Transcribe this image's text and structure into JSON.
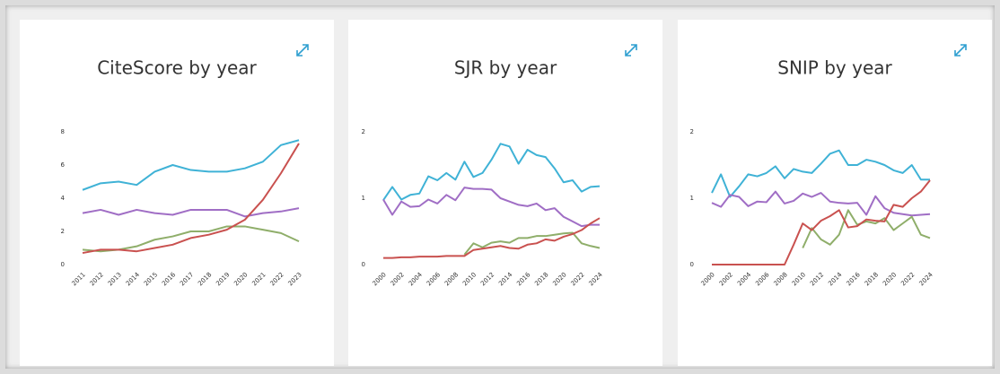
{
  "chart_data": [
    {
      "type": "line",
      "title": "CiteScore by year",
      "x": [
        2011,
        2012,
        2013,
        2014,
        2015,
        2016,
        2017,
        2018,
        2019,
        2020,
        2021,
        2022,
        2023
      ],
      "xlim": [
        2011,
        2023
      ],
      "xticks": [
        2011,
        2012,
        2013,
        2014,
        2015,
        2016,
        2017,
        2018,
        2019,
        2020,
        2021,
        2022,
        2023
      ],
      "ylim": [
        0,
        8
      ],
      "yticks": [
        0,
        2,
        4,
        6,
        8
      ],
      "series": [
        {
          "color": "#3fb2d6",
          "values": [
            4.5,
            4.9,
            5.0,
            4.8,
            5.6,
            6.0,
            5.7,
            5.6,
            5.6,
            5.8,
            6.2,
            7.2,
            7.5
          ]
        },
        {
          "color": "#a06ec5",
          "values": [
            3.1,
            3.3,
            3.0,
            3.3,
            3.1,
            3.0,
            3.3,
            3.3,
            3.3,
            2.9,
            3.1,
            3.2,
            3.4
          ]
        },
        {
          "color": "#8fae6a",
          "values": [
            0.9,
            0.8,
            0.9,
            1.1,
            1.5,
            1.7,
            2.0,
            2.0,
            2.3,
            2.3,
            2.1,
            1.9,
            1.4
          ]
        },
        {
          "color": "#c9514f",
          "values": [
            0.7,
            0.9,
            0.9,
            0.8,
            1.0,
            1.2,
            1.6,
            1.8,
            2.1,
            2.7,
            3.9,
            5.5,
            7.3
          ]
        }
      ]
    },
    {
      "type": "line",
      "title": "SJR by year",
      "x": [
        2000,
        2001,
        2002,
        2003,
        2004,
        2005,
        2006,
        2007,
        2008,
        2009,
        2010,
        2011,
        2012,
        2013,
        2014,
        2015,
        2016,
        2017,
        2018,
        2019,
        2020,
        2021,
        2022,
        2023,
        2024
      ],
      "xlim": [
        2000,
        2024
      ],
      "xticks": [
        2000,
        2002,
        2004,
        2006,
        2008,
        2010,
        2012,
        2014,
        2016,
        2018,
        2020,
        2022,
        2024
      ],
      "ylim": [
        0,
        2
      ],
      "yticks": [
        0,
        1,
        2
      ],
      "series": [
        {
          "color": "#3fb2d6",
          "values": [
            0.97,
            1.17,
            0.98,
            1.05,
            1.07,
            1.33,
            1.27,
            1.38,
            1.28,
            1.55,
            1.32,
            1.38,
            1.58,
            1.82,
            1.78,
            1.52,
            1.73,
            1.65,
            1.62,
            1.45,
            1.24,
            1.27,
            1.1,
            1.17,
            1.18
          ]
        },
        {
          "color": "#a06ec5",
          "values": [
            0.98,
            0.75,
            0.95,
            0.87,
            0.88,
            0.98,
            0.92,
            1.05,
            0.97,
            1.16,
            1.14,
            1.14,
            1.13,
            1.0,
            0.95,
            0.9,
            0.88,
            0.92,
            0.82,
            0.85,
            0.72,
            0.65,
            0.58,
            0.6,
            0.6
          ]
        },
        {
          "color": "#8fae6a",
          "values": [
            null,
            null,
            null,
            null,
            null,
            null,
            null,
            null,
            null,
            0.15,
            0.32,
            0.26,
            0.33,
            0.35,
            0.33,
            0.4,
            0.4,
            0.43,
            0.43,
            0.45,
            0.47,
            0.48,
            0.32,
            0.28,
            0.25
          ]
        },
        {
          "color": "#c9514f",
          "values": [
            0.1,
            0.1,
            0.11,
            0.11,
            0.12,
            0.12,
            0.12,
            0.13,
            0.13,
            0.13,
            0.22,
            0.24,
            0.26,
            0.28,
            0.25,
            0.24,
            0.3,
            0.32,
            0.38,
            0.36,
            0.42,
            0.46,
            0.52,
            0.62,
            0.7
          ]
        }
      ]
    },
    {
      "type": "line",
      "title": "SNIP by year",
      "x": [
        2000,
        2001,
        2002,
        2003,
        2004,
        2005,
        2006,
        2007,
        2008,
        2009,
        2010,
        2011,
        2012,
        2013,
        2014,
        2015,
        2016,
        2017,
        2018,
        2019,
        2020,
        2021,
        2022,
        2023,
        2024
      ],
      "xlim": [
        2000,
        2024
      ],
      "xticks": [
        2000,
        2002,
        2004,
        2006,
        2008,
        2010,
        2012,
        2014,
        2016,
        2018,
        2020,
        2022,
        2024
      ],
      "ylim": [
        0,
        2
      ],
      "yticks": [
        0,
        1,
        2
      ],
      "series": [
        {
          "color": "#3fb2d6",
          "values": [
            1.08,
            1.36,
            1.02,
            1.18,
            1.36,
            1.33,
            1.38,
            1.48,
            1.3,
            1.44,
            1.4,
            1.38,
            1.52,
            1.67,
            1.72,
            1.5,
            1.5,
            1.58,
            1.55,
            1.5,
            1.42,
            1.38,
            1.5,
            1.28,
            1.28
          ]
        },
        {
          "color": "#a06ec5",
          "values": [
            0.93,
            0.87,
            1.05,
            1.02,
            0.88,
            0.95,
            0.94,
            1.1,
            0.92,
            0.96,
            1.07,
            1.02,
            1.08,
            0.95,
            0.93,
            0.92,
            0.93,
            0.75,
            1.03,
            0.85,
            0.78,
            0.76,
            0.74,
            0.75,
            0.76
          ]
        },
        {
          "color": "#8fae6a",
          "values": [
            null,
            null,
            null,
            null,
            null,
            null,
            null,
            null,
            null,
            null,
            0.25,
            0.55,
            0.38,
            0.3,
            0.45,
            0.82,
            0.6,
            0.65,
            0.62,
            0.7,
            0.52,
            0.62,
            0.72,
            0.45,
            0.4
          ]
        },
        {
          "color": "#c9514f",
          "values": [
            0,
            0,
            0,
            0,
            0,
            0,
            0,
            0,
            0,
            0.3,
            0.62,
            0.52,
            0.66,
            0.73,
            0.82,
            0.56,
            0.58,
            0.68,
            0.66,
            0.65,
            0.9,
            0.87,
            1.0,
            1.1,
            1.27
          ]
        }
      ]
    }
  ]
}
